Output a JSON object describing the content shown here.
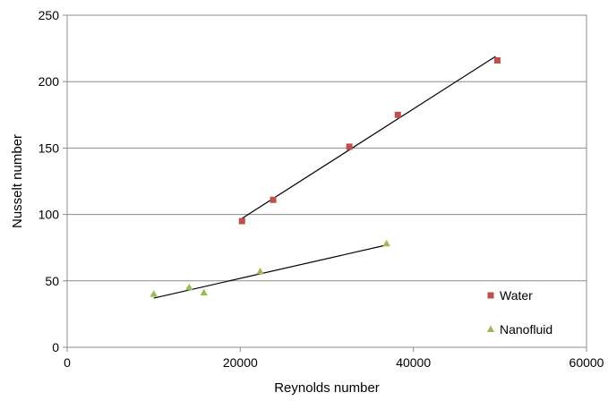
{
  "chart_data": {
    "type": "scatter",
    "title": "",
    "xlabel": "Reynolds number",
    "ylabel": "Nusselt number",
    "xlim": [
      0,
      60000
    ],
    "ylim": [
      0,
      250
    ],
    "xticks": [
      0,
      20000,
      40000,
      60000
    ],
    "yticks": [
      0,
      50,
      100,
      150,
      200,
      250
    ],
    "xtick_labels": [
      "0",
      "20000",
      "40000",
      "60000"
    ],
    "ytick_labels": [
      "0",
      "50",
      "100",
      "150",
      "200",
      "250"
    ],
    "grid": "horizontal",
    "legend_position": "bottom-right",
    "series": [
      {
        "name": "Water",
        "marker": "square",
        "color": "#C0504D",
        "x": [
          20200,
          23800,
          32600,
          38200,
          49700
        ],
        "y": [
          95,
          111,
          151,
          175,
          216
        ],
        "trendline": {
          "x": [
            20200,
            49500
          ],
          "y": [
            97,
            219
          ]
        }
      },
      {
        "name": "Nanofluid",
        "marker": "triangle",
        "color": "#9BBB59",
        "x": [
          10000,
          14100,
          15800,
          22300,
          36900
        ],
        "y": [
          40,
          45,
          41,
          57,
          78
        ],
        "trendline": {
          "x": [
            10000,
            36900
          ],
          "y": [
            37,
            77
          ]
        }
      }
    ]
  }
}
